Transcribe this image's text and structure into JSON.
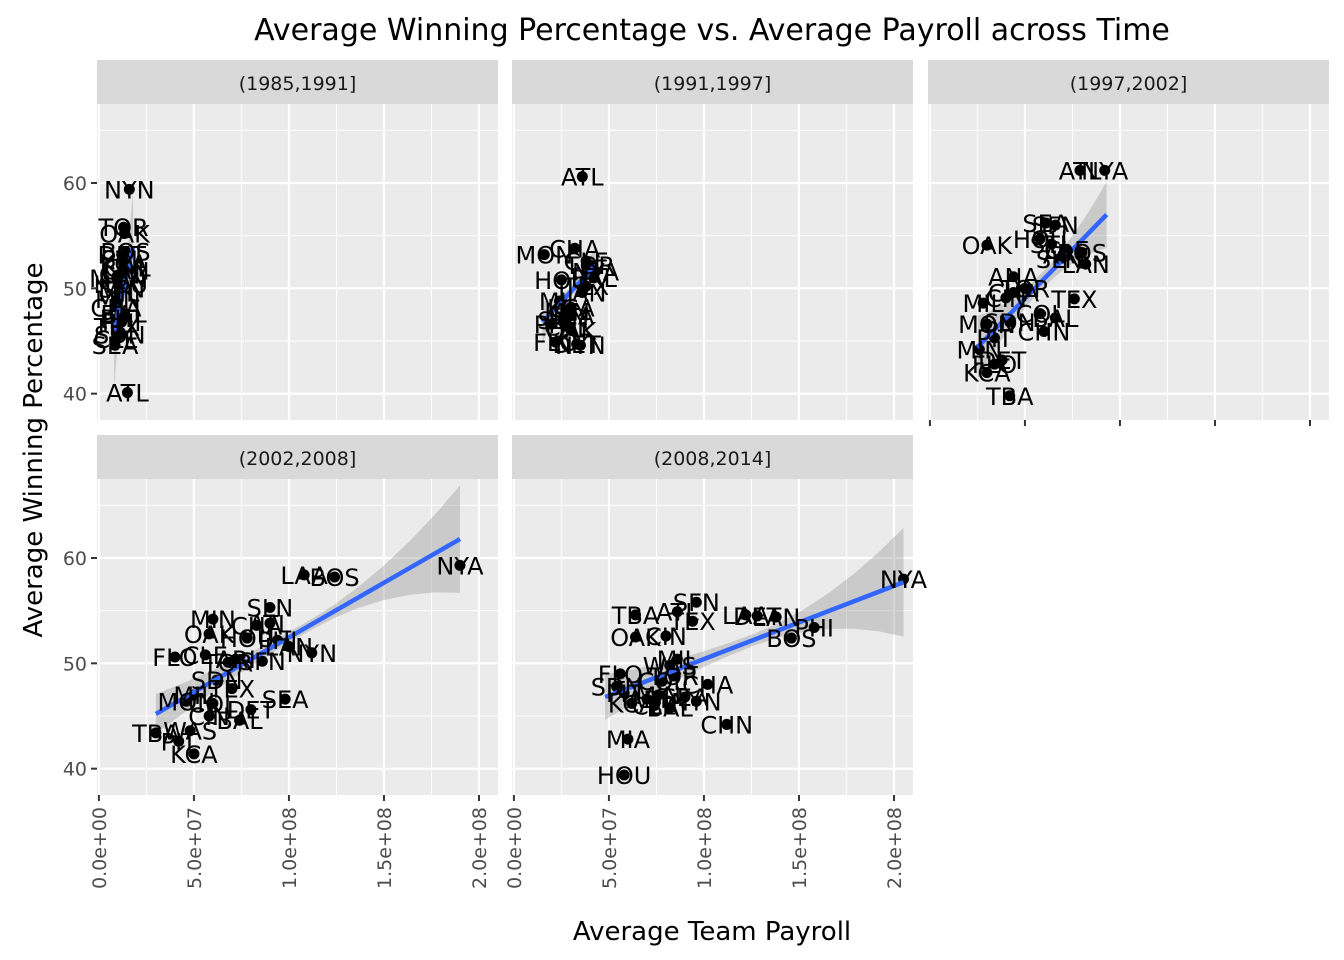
{
  "chart_data": {
    "type": "scatter",
    "title": "Average Winning Percentage vs. Average Payroll across Time",
    "xlabel": "Average Team Payroll",
    "ylabel": "Average Winning Percentage",
    "xlim": [
      -1000000.0,
      210000000.0
    ],
    "ylim": [
      37.5,
      67.5
    ],
    "x_ticks": [
      0,
      50000000,
      100000000,
      150000000,
      200000000
    ],
    "x_tick_labels": [
      "0.0e+00",
      "5.0e+07",
      "1.0e+08",
      "1.5e+08",
      "2.0e+08"
    ],
    "y_ticks": [
      40,
      50,
      60
    ],
    "y_tick_labels": [
      "40",
      "50",
      "60"
    ],
    "grid": true,
    "smooth": {
      "method": "lm",
      "color": "#3366ff",
      "band_color": "#999999"
    },
    "facets": [
      {
        "label": "(1985,1991]",
        "fit": {
          "x": [
            8000000,
            18000000
          ],
          "y": [
            46,
            54
          ]
        },
        "band": [
          4,
          4
        ],
        "points": [
          {
            "team": "NYN",
            "x": 16000000,
            "y": 59.4
          },
          {
            "team": "TOR",
            "x": 13000000,
            "y": 55.8
          },
          {
            "team": "OAK",
            "x": 13500000,
            "y": 55.2
          },
          {
            "team": "BOS",
            "x": 14000000,
            "y": 53.5
          },
          {
            "team": "DET",
            "x": 12000000,
            "y": 53.2
          },
          {
            "team": "STL",
            "x": 12500000,
            "y": 52.8
          },
          {
            "team": "KCA",
            "x": 13000000,
            "y": 52.4
          },
          {
            "team": "CAL",
            "x": 15000000,
            "y": 52.0
          },
          {
            "team": "LAN",
            "x": 14000000,
            "y": 51.7
          },
          {
            "team": "CIN",
            "x": 11000000,
            "y": 51.3
          },
          {
            "team": "MON",
            "x": 10000000,
            "y": 51.0
          },
          {
            "team": "HOU",
            "x": 11500000,
            "y": 50.4
          },
          {
            "team": "SFN",
            "x": 12000000,
            "y": 50.0
          },
          {
            "team": "MIL",
            "x": 10500000,
            "y": 49.6
          },
          {
            "team": "MIN",
            "x": 10000000,
            "y": 49.0
          },
          {
            "team": "CHA",
            "x": 9000000,
            "y": 48.2
          },
          {
            "team": "BAL",
            "x": 13000000,
            "y": 47.6
          },
          {
            "team": "PIT",
            "x": 10000000,
            "y": 47.2
          },
          {
            "team": "PHI",
            "x": 12000000,
            "y": 46.8
          },
          {
            "team": "TEX",
            "x": 9500000,
            "y": 46.4
          },
          {
            "team": "CLE",
            "x": 9000000,
            "y": 45.2
          },
          {
            "team": "SDN",
            "x": 11000000,
            "y": 45.6
          },
          {
            "team": "SEA",
            "x": 8500000,
            "y": 44.6
          },
          {
            "team": "ATL",
            "x": 15000000,
            "y": 40.1
          }
        ]
      },
      {
        "label": "(1991,1997]",
        "fit": {
          "x": [
            15000000,
            43000000
          ],
          "y": [
            46.8,
            52.2
          ]
        },
        "band": [
          1.5,
          1.4
        ],
        "points": [
          {
            "team": "ATL",
            "x": 36000000,
            "y": 60.6
          },
          {
            "team": "CHA",
            "x": 32000000,
            "y": 53.8
          },
          {
            "team": "MON",
            "x": 16000000,
            "y": 53.2
          },
          {
            "team": "CLE",
            "x": 38000000,
            "y": 52.6
          },
          {
            "team": "TOR",
            "x": 40000000,
            "y": 52.2
          },
          {
            "team": "NYA",
            "x": 43000000,
            "y": 51.6
          },
          {
            "team": "BAL",
            "x": 42000000,
            "y": 51.0
          },
          {
            "team": "HOU",
            "x": 25000000,
            "y": 50.8
          },
          {
            "team": "TEX",
            "x": 38000000,
            "y": 50.2
          },
          {
            "team": "LAN",
            "x": 36000000,
            "y": 49.6
          },
          {
            "team": "MIL",
            "x": 24000000,
            "y": 48.8
          },
          {
            "team": "KCA",
            "x": 30000000,
            "y": 48.2
          },
          {
            "team": "MIN",
            "x": 28000000,
            "y": 47.8
          },
          {
            "team": "SEA",
            "x": 30000000,
            "y": 47.4
          },
          {
            "team": "SDN",
            "x": 26000000,
            "y": 47.0
          },
          {
            "team": "PIT",
            "x": 20000000,
            "y": 46.6
          },
          {
            "team": "CAL",
            "x": 28000000,
            "y": 46.4
          },
          {
            "team": "OAK",
            "x": 30000000,
            "y": 46.0
          },
          {
            "team": "FLO",
            "x": 22000000,
            "y": 44.9
          },
          {
            "team": "DET",
            "x": 33000000,
            "y": 44.7
          },
          {
            "team": "NYN",
            "x": 35000000,
            "y": 44.6
          }
        ]
      },
      {
        "label": "(1997,2002]",
        "fit": {
          "x": [
            25000000,
            93000000
          ],
          "y": [
            44.4,
            57
          ]
        },
        "band": [
          2.2,
          2.4
        ],
        "points": [
          {
            "team": "ATL",
            "x": 79000000,
            "y": 61.2
          },
          {
            "team": "NYA",
            "x": 92000000,
            "y": 61.2
          },
          {
            "team": "SEA",
            "x": 61000000,
            "y": 56.2
          },
          {
            "team": "SFN",
            "x": 66000000,
            "y": 56.0
          },
          {
            "team": "HOU",
            "x": 58000000,
            "y": 54.7
          },
          {
            "team": "OAK",
            "x": 30000000,
            "y": 54.1
          },
          {
            "team": "STL",
            "x": 64000000,
            "y": 54.2
          },
          {
            "team": "CLE",
            "x": 72000000,
            "y": 53.7
          },
          {
            "team": "BOS",
            "x": 80000000,
            "y": 53.4
          },
          {
            "team": "ARI",
            "x": 70000000,
            "y": 53.2
          },
          {
            "team": "SLN",
            "x": 68000000,
            "y": 52.8
          },
          {
            "team": "LAN",
            "x": 82000000,
            "y": 52.3
          },
          {
            "team": "ANA",
            "x": 44000000,
            "y": 51.1
          },
          {
            "team": "TOR",
            "x": 50000000,
            "y": 50.0
          },
          {
            "team": "CHA",
            "x": 44000000,
            "y": 49.6
          },
          {
            "team": "CIN",
            "x": 40000000,
            "y": 49.1
          },
          {
            "team": "TEX",
            "x": 76000000,
            "y": 49.0
          },
          {
            "team": "MIL",
            "x": 28000000,
            "y": 48.6
          },
          {
            "team": "COL",
            "x": 58000000,
            "y": 47.6
          },
          {
            "team": "BAL",
            "x": 66000000,
            "y": 47.2
          },
          {
            "team": "MON",
            "x": 30000000,
            "y": 46.6
          },
          {
            "team": "SDN",
            "x": 42000000,
            "y": 46.8
          },
          {
            "team": "CHN",
            "x": 60000000,
            "y": 45.9
          },
          {
            "team": "PIT",
            "x": 34000000,
            "y": 45.3
          },
          {
            "team": "MIN",
            "x": 26000000,
            "y": 44.2
          },
          {
            "team": "DET",
            "x": 38000000,
            "y": 43.2
          },
          {
            "team": "FLO",
            "x": 34000000,
            "y": 42.8
          },
          {
            "team": "KCA",
            "x": 30000000,
            "y": 42.0
          },
          {
            "team": "TBA",
            "x": 42000000,
            "y": 39.8
          }
        ]
      },
      {
        "label": "(2002,2008]",
        "fit": {
          "x": [
            30000000,
            190000000
          ],
          "y": [
            45.2,
            61.8
          ]
        },
        "band": [
          1.4,
          4.6
        ],
        "points": [
          {
            "team": "NYA",
            "x": 190000000,
            "y": 59.3
          },
          {
            "team": "LAA",
            "x": 108000000,
            "y": 58.4
          },
          {
            "team": "BOS",
            "x": 124000000,
            "y": 58.2
          },
          {
            "team": "SLN",
            "x": 90000000,
            "y": 55.3
          },
          {
            "team": "MIN",
            "x": 60000000,
            "y": 54.2
          },
          {
            "team": "ATL",
            "x": 90000000,
            "y": 53.8
          },
          {
            "team": "CHA",
            "x": 83000000,
            "y": 53.6
          },
          {
            "team": "OAK",
            "x": 58000000,
            "y": 52.8
          },
          {
            "team": "HOU",
            "x": 78000000,
            "y": 52.4
          },
          {
            "team": "PHI",
            "x": 94000000,
            "y": 52.2
          },
          {
            "team": "LAN",
            "x": 100000000,
            "y": 51.6
          },
          {
            "team": "FLO",
            "x": 40000000,
            "y": 50.6
          },
          {
            "team": "CLE",
            "x": 56000000,
            "y": 50.8
          },
          {
            "team": "ARI",
            "x": 72000000,
            "y": 50.4
          },
          {
            "team": "TOR",
            "x": 68000000,
            "y": 50.1
          },
          {
            "team": "SFN",
            "x": 86000000,
            "y": 50.2
          },
          {
            "team": "NYN",
            "x": 112000000,
            "y": 51.0
          },
          {
            "team": "SDN",
            "x": 62000000,
            "y": 48.4
          },
          {
            "team": "TEX",
            "x": 70000000,
            "y": 47.6
          },
          {
            "team": "SEA",
            "x": 98000000,
            "y": 46.6
          },
          {
            "team": "MIL",
            "x": 50000000,
            "y": 47.0
          },
          {
            "team": "COL",
            "x": 60000000,
            "y": 46.2
          },
          {
            "team": "MON",
            "x": 46000000,
            "y": 46.4
          },
          {
            "team": "DET",
            "x": 80000000,
            "y": 45.6
          },
          {
            "team": "CIN",
            "x": 58000000,
            "y": 45.0
          },
          {
            "team": "BAL",
            "x": 74000000,
            "y": 44.6
          },
          {
            "team": "TBA",
            "x": 30000000,
            "y": 43.4
          },
          {
            "team": "WAS",
            "x": 48000000,
            "y": 43.6
          },
          {
            "team": "PIT",
            "x": 42000000,
            "y": 42.6
          },
          {
            "team": "KCA",
            "x": 50000000,
            "y": 41.4
          }
        ]
      },
      {
        "label": "(2008,2014]",
        "fit": {
          "x": [
            48000000,
            205000000
          ],
          "y": [
            46.8,
            57.7
          ]
        },
        "band": [
          1.6,
          4.6
        ],
        "points": [
          {
            "team": "NYA",
            "x": 205000000,
            "y": 58.0
          },
          {
            "team": "SFN",
            "x": 96000000,
            "y": 55.8
          },
          {
            "team": "ATL",
            "x": 86000000,
            "y": 54.9
          },
          {
            "team": "TBA",
            "x": 64000000,
            "y": 54.6
          },
          {
            "team": "LAA",
            "x": 122000000,
            "y": 54.6
          },
          {
            "team": "DET",
            "x": 128000000,
            "y": 54.5
          },
          {
            "team": "LAN",
            "x": 138000000,
            "y": 54.4
          },
          {
            "team": "TEX",
            "x": 94000000,
            "y": 54.0
          },
          {
            "team": "PHI",
            "x": 158000000,
            "y": 53.4
          },
          {
            "team": "BOS",
            "x": 146000000,
            "y": 52.4
          },
          {
            "team": "OAK",
            "x": 64000000,
            "y": 52.5
          },
          {
            "team": "CIN",
            "x": 80000000,
            "y": 52.6
          },
          {
            "team": "MIL",
            "x": 86000000,
            "y": 50.4
          },
          {
            "team": "WAS",
            "x": 82000000,
            "y": 49.8
          },
          {
            "team": "FLO",
            "x": 56000000,
            "y": 49.0
          },
          {
            "team": "TOR",
            "x": 84000000,
            "y": 48.8
          },
          {
            "team": "COL",
            "x": 78000000,
            "y": 48.3
          },
          {
            "team": "CHA",
            "x": 102000000,
            "y": 48.0
          },
          {
            "team": "SDN",
            "x": 54000000,
            "y": 47.8
          },
          {
            "team": "PIT",
            "x": 58000000,
            "y": 47.2
          },
          {
            "team": "MIN",
            "x": 76000000,
            "y": 47.0
          },
          {
            "team": "ARI",
            "x": 70000000,
            "y": 46.6
          },
          {
            "team": "SEA",
            "x": 90000000,
            "y": 46.8
          },
          {
            "team": "KCA",
            "x": 62000000,
            "y": 46.2
          },
          {
            "team": "CLE",
            "x": 74000000,
            "y": 46.0
          },
          {
            "team": "BAL",
            "x": 82000000,
            "y": 45.8
          },
          {
            "team": "NYN",
            "x": 96000000,
            "y": 46.4
          },
          {
            "team": "CHN",
            "x": 112000000,
            "y": 44.2
          },
          {
            "team": "MIA",
            "x": 60000000,
            "y": 42.8
          },
          {
            "team": "HOU",
            "x": 58000000,
            "y": 39.4
          }
        ]
      }
    ]
  }
}
